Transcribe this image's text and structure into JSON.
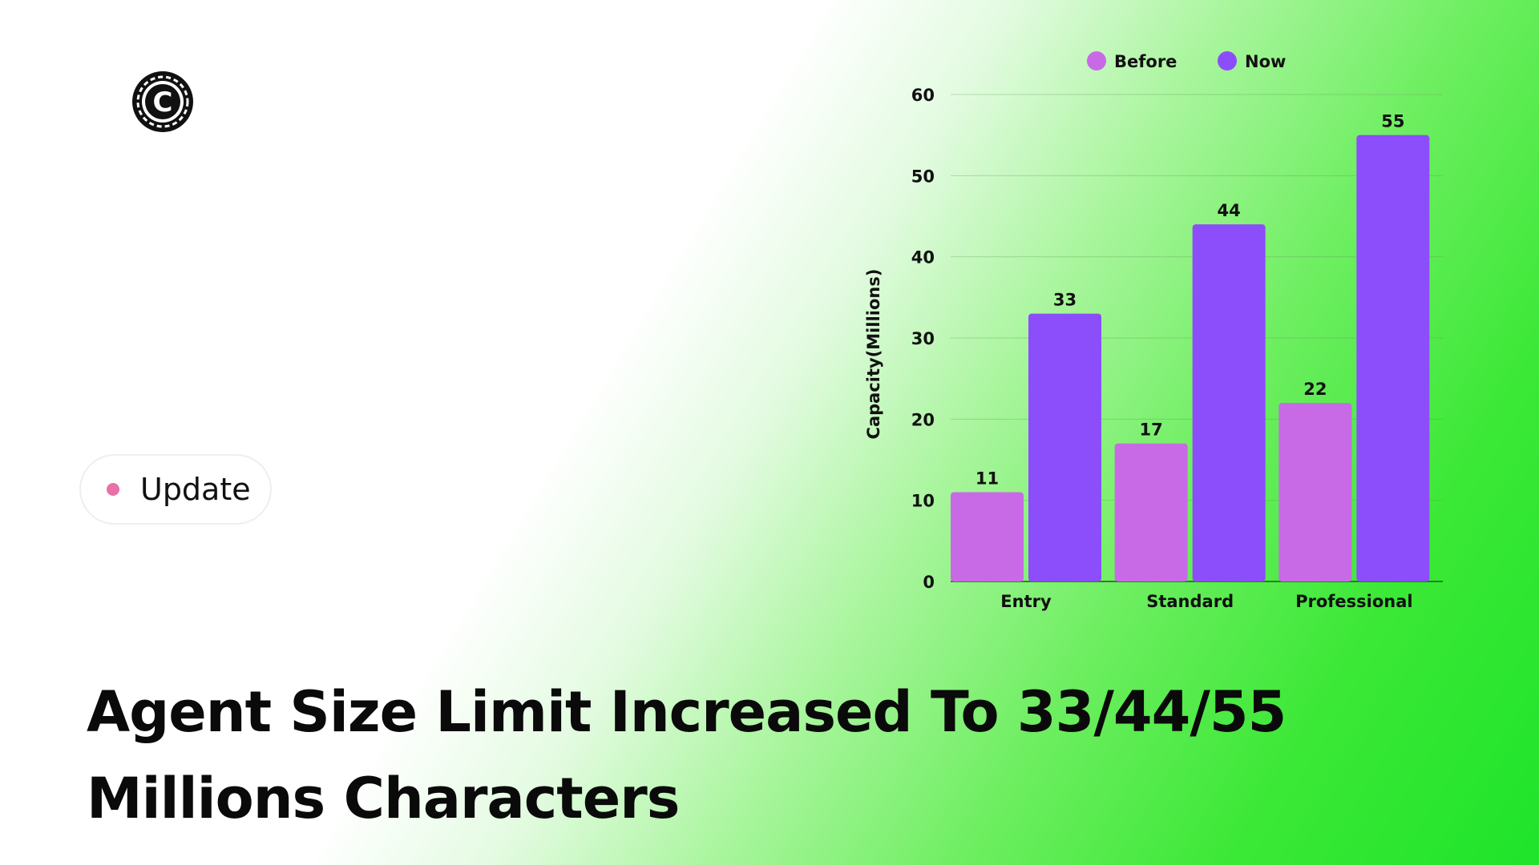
{
  "logo": {
    "icon": "copyright-c-icon",
    "glyph": "C"
  },
  "badge": {
    "label": "Update",
    "dot_color": "#e672a8"
  },
  "headline": {
    "line1": "Agent Size Limit Increased To 33/44/55",
    "line2": "Millions Characters"
  },
  "chart_data": {
    "type": "bar",
    "categories": [
      "Entry",
      "Standard",
      "Professional"
    ],
    "series": [
      {
        "name": "Before",
        "values": [
          11,
          17,
          22
        ],
        "color": "#c86ae6"
      },
      {
        "name": "Now",
        "values": [
          33,
          44,
          55
        ],
        "color": "#8c4dfb"
      }
    ],
    "ylabel": "Capacity(Millions)",
    "ylim": [
      0,
      60
    ],
    "yticks": [
      0,
      10,
      20,
      30,
      40,
      50,
      60
    ],
    "data_labels": true,
    "grid": "horizontal",
    "legend": "top-center"
  }
}
